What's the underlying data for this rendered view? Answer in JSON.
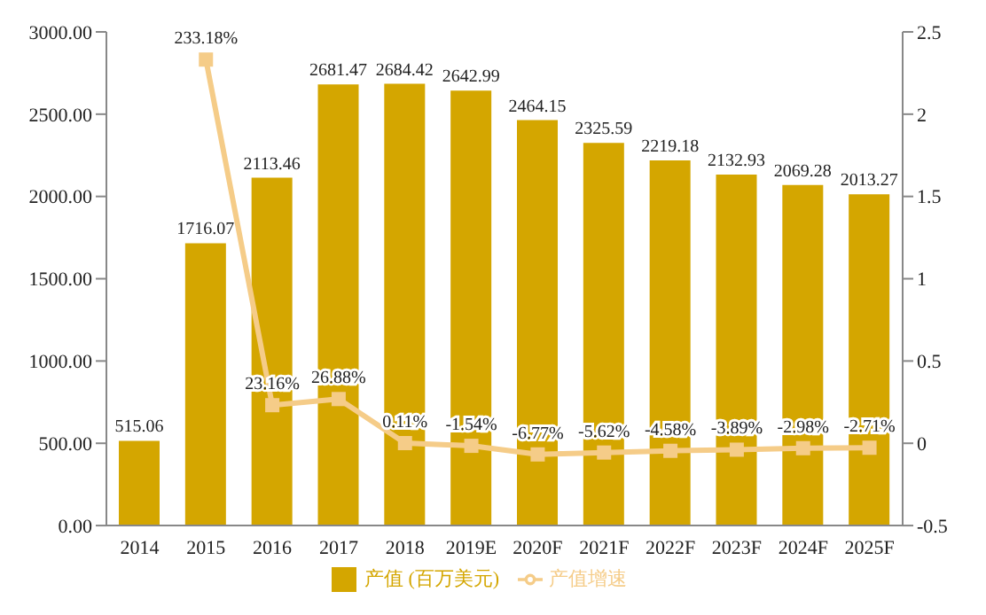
{
  "chart_data": {
    "type": "bar",
    "categories": [
      "2014",
      "2015",
      "2016",
      "2017",
      "2018",
      "2019E",
      "2020F",
      "2021F",
      "2022F",
      "2023F",
      "2024F",
      "2025F"
    ],
    "series": [
      {
        "name": "产值 (百万美元)",
        "color": "#d4a600",
        "values": [
          515.06,
          1716.07,
          2113.46,
          2681.47,
          2684.42,
          2642.99,
          2464.15,
          2325.59,
          2219.18,
          2132.93,
          2069.28,
          2013.27
        ],
        "value_labels": [
          "515.06",
          "1716.07",
          "2113.46",
          "2681.47",
          "2684.42",
          "2642.99",
          "2464.15",
          "2325.59",
          "2219.18",
          "2132.93",
          "2069.28",
          "2013.27"
        ]
      },
      {
        "name": "产值增速",
        "type": "line",
        "axis": "y2",
        "color": "#f5cc88",
        "values": [
          null,
          2.3318,
          0.2316,
          0.2688,
          0.0011,
          -0.0154,
          -0.0677,
          -0.0562,
          -0.0458,
          -0.0389,
          -0.0298,
          -0.0271
        ],
        "value_labels": [
          null,
          "233.18%",
          "23.16%",
          "26.88%",
          "0.11%",
          "-1.54%",
          "-6.77%",
          "-5.62%",
          "-4.58%",
          "-3.89%",
          "-2.98%",
          "-2.71%"
        ]
      }
    ],
    "ylim": [
      0,
      3000
    ],
    "yticks": [
      {
        "value": 0,
        "label": "0.00"
      },
      {
        "value": 500,
        "label": "500.00"
      },
      {
        "value": 1000,
        "label": "1000.00"
      },
      {
        "value": 1500,
        "label": "1500.00"
      },
      {
        "value": 2000,
        "label": "2000.00"
      },
      {
        "value": 2500,
        "label": "2500.00"
      },
      {
        "value": 3000,
        "label": "3000.00"
      }
    ],
    "y2lim": [
      -0.5,
      2.5
    ],
    "y2ticks": [
      -0.5,
      0,
      0.5,
      1,
      1.5,
      2,
      2.5
    ],
    "grid": false,
    "legend": "bottom",
    "marker": "square",
    "line_style": "solid"
  }
}
